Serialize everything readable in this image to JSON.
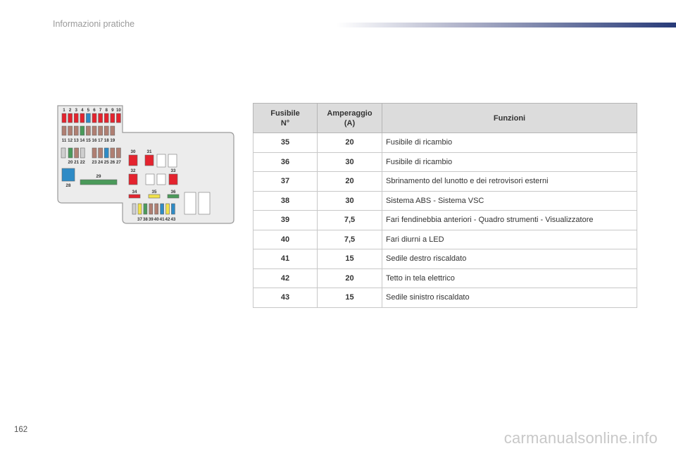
{
  "header": {
    "section_title": "Informazioni pratiche"
  },
  "page": {
    "number": "162"
  },
  "watermark": "carmanualsonline.info",
  "table": {
    "headers": {
      "fuse": [
        "Fusibile",
        "N°"
      ],
      "amperage": [
        "Amperaggio",
        "(A)"
      ],
      "functions": "Funzioni"
    },
    "rows": [
      {
        "fuse": "35",
        "amperage": "20",
        "function": "Fusibile di ricambio"
      },
      {
        "fuse": "36",
        "amperage": "30",
        "function": "Fusibile di ricambio"
      },
      {
        "fuse": "37",
        "amperage": "20",
        "function": "Sbrinamento del lunotto e dei retrovisori esterni"
      },
      {
        "fuse": "38",
        "amperage": "30",
        "function": "Sistema ABS - Sistema VSC"
      },
      {
        "fuse": "39",
        "amperage": "7,5",
        "function": "Fari fendinebbia anteriori - Quadro strumenti - Visualizzatore"
      },
      {
        "fuse": "40",
        "amperage": "7,5",
        "function": "Fari diurni a LED"
      },
      {
        "fuse": "41",
        "amperage": "15",
        "function": "Sedile destro riscaldato"
      },
      {
        "fuse": "42",
        "amperage": "20",
        "function": "Tetto in tela elettrico"
      },
      {
        "fuse": "43",
        "amperage": "15",
        "function": "Sedile sinistro riscaldato"
      }
    ]
  },
  "diagram": {
    "top_row_labels": [
      "1",
      "2",
      "3",
      "4",
      "5",
      "6",
      "7",
      "8",
      "9",
      "10"
    ],
    "second_row_labels": [
      "11",
      "12",
      "13",
      "14",
      "15",
      "16",
      "17",
      "18",
      "19"
    ],
    "third_row_left_labels": [
      "20",
      "21",
      "22"
    ],
    "third_row_right_labels": [
      "23",
      "24",
      "25",
      "26",
      "27"
    ],
    "block_labels": {
      "f28": "28",
      "f29": "29",
      "f30": "30",
      "f31": "31",
      "f32": "32",
      "f33": "33",
      "f34": "34",
      "f35": "35",
      "f36": "36"
    },
    "bottom_row_labels": [
      "37",
      "38",
      "39",
      "40",
      "41",
      "42",
      "43"
    ],
    "colors": {
      "red": "#e4232e",
      "brown": "#b07f72",
      "green": "#4a9a5a",
      "blue": "#2e8bc6",
      "yellow": "#f1e24a",
      "gray": "#cfcfcf",
      "panel": "#ececec",
      "outline": "#9a9a9a"
    }
  }
}
